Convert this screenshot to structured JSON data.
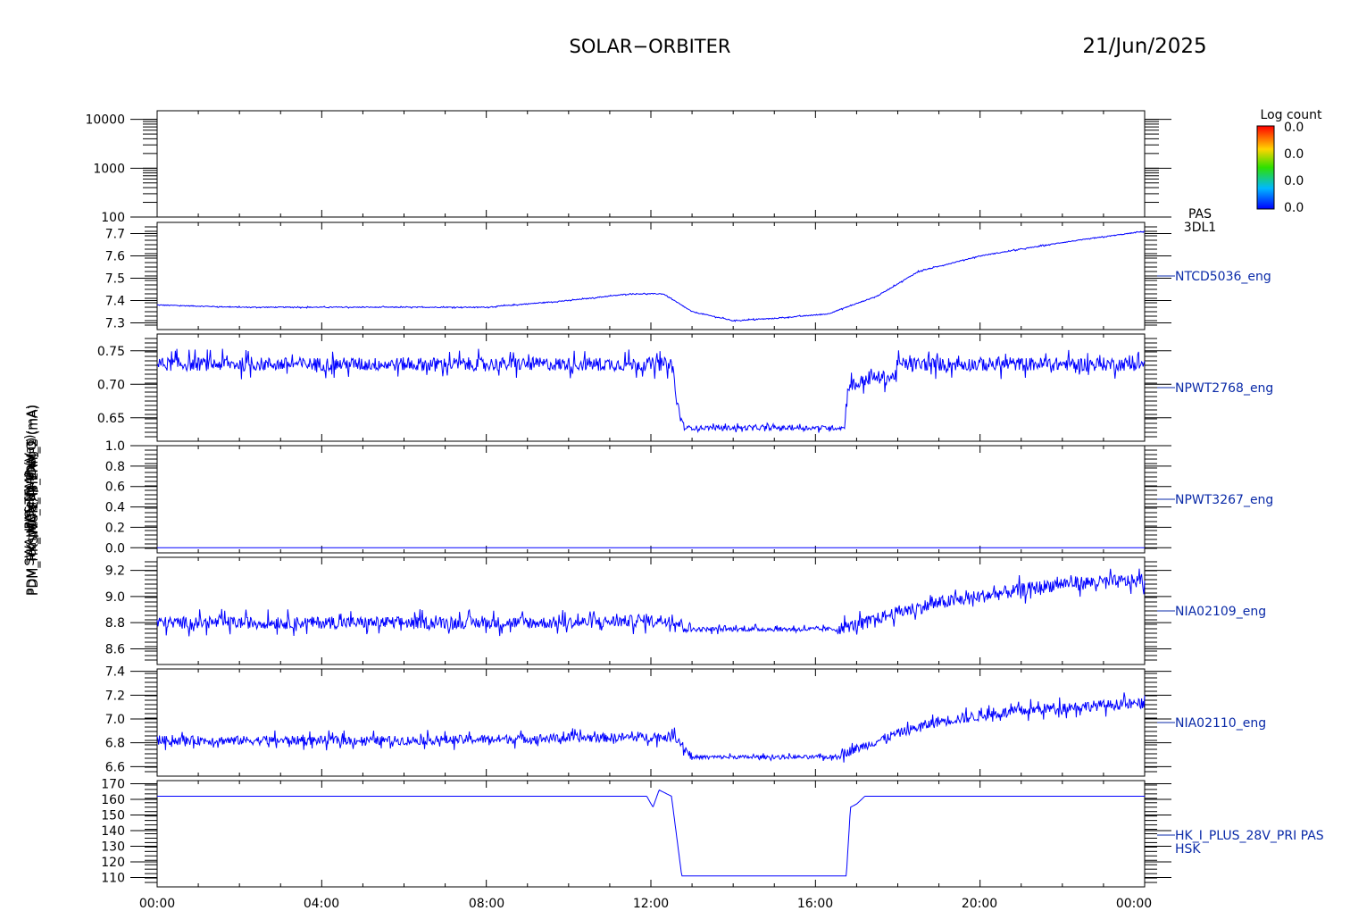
{
  "header": {
    "title": "SOLAR−ORBITER",
    "date": "21/Jun/2025"
  },
  "colorbar": {
    "title": "Log count",
    "labels": [
      "0.0",
      "0.0",
      "0.0",
      "0.0"
    ],
    "colors": [
      "#ff0000",
      "#ffd400",
      "#2ee000",
      "#00b8ff",
      "#0000ff"
    ]
  },
  "colors": {
    "trace": "#0000ff",
    "label": "#0a2aa8",
    "axis": "#000000"
  },
  "x_tick_labels": [
    "00:00",
    "04:00",
    "08:00",
    "12:00",
    "16:00",
    "20:00",
    "00:00"
  ],
  "chart_data": [
    {
      "type": "heatmap",
      "ylabel": "(eV)",
      "yscale": "log",
      "ylim": [
        100,
        15000
      ],
      "y_tick_values": [
        100,
        1000,
        10000
      ],
      "y_tick_labels": [
        "100",
        "1000",
        "10000"
      ],
      "side_label": [
        "PAS",
        "3DL1"
      ],
      "values": []
    },
    {
      "type": "line",
      "ylabel": "Tempx Temp (DegC)",
      "ylim": [
        7.27,
        7.75
      ],
      "y_tick_values": [
        7.3,
        7.4,
        7.5,
        7.6,
        7.7
      ],
      "y_tick_labels": [
        "7.3",
        "7.4",
        "7.5",
        "7.6",
        "7.7"
      ],
      "side_label": "NTCD5036_eng",
      "x": [
        0,
        2,
        4,
        6,
        8,
        10,
        11.5,
        12.3,
        13,
        14,
        15,
        16.3,
        17.5,
        18.5,
        20,
        22,
        24
      ],
      "y": [
        7.38,
        7.37,
        7.37,
        7.37,
        7.37,
        7.4,
        7.43,
        7.43,
        7.35,
        7.31,
        7.32,
        7.34,
        7.42,
        7.53,
        7.6,
        7.66,
        7.71
      ]
    },
    {
      "type": "line",
      "ylabel": "SWA_EAS_ITM",
      "ylim": [
        0.615,
        0.775
      ],
      "y_tick_values": [
        0.65,
        0.7,
        0.75
      ],
      "y_tick_labels": [
        "0.65",
        "0.70",
        "0.75"
      ],
      "side_label": "NPWT2768_eng",
      "x": [
        0,
        12.5,
        12.55,
        12.6,
        12.8,
        16.7,
        16.8,
        17.0,
        17.3,
        17.9,
        18.0,
        24
      ],
      "y": [
        0.73,
        0.73,
        0.72,
        0.68,
        0.635,
        0.635,
        0.7,
        0.7,
        0.71,
        0.71,
        0.73,
        0.73
      ]
    },
    {
      "type": "line",
      "ylabel": "SWA_HIS_TEMP (Vac)",
      "ylim": [
        -0.05,
        1.0
      ],
      "y_tick_values": [
        0.0,
        0.2,
        0.4,
        0.6,
        0.8,
        1.0
      ],
      "y_tick_labels": [
        "0.0",
        "0.2",
        "0.4",
        "0.6",
        "0.8",
        "1.0"
      ],
      "side_label": "NPWT3267_eng",
      "x": [
        0,
        24
      ],
      "y": [
        0.0,
        0.0
      ]
    },
    {
      "type": "line",
      "ylabel": "PDM_HK_IMON_THERM_1 (mA)",
      "ylim": [
        8.48,
        9.3
      ],
      "y_tick_values": [
        8.6,
        8.8,
        9.0,
        9.2
      ],
      "y_tick_labels": [
        "8.6",
        "8.8",
        "9.0",
        "9.2"
      ],
      "side_label": "NIA02109_eng",
      "x": [
        0,
        6,
        10,
        12.5,
        13,
        16.5,
        17.2,
        18,
        19,
        20,
        22,
        24
      ],
      "y": [
        8.8,
        8.8,
        8.8,
        8.82,
        8.75,
        8.75,
        8.8,
        8.88,
        8.95,
        9.0,
        9.1,
        9.12
      ]
    },
    {
      "type": "line",
      "ylabel": "PDM_HK_IMON_THERM_2 (mA)",
      "ylim": [
        6.52,
        7.42
      ],
      "y_tick_values": [
        6.6,
        6.8,
        7.0,
        7.2,
        7.4
      ],
      "y_tick_labels": [
        "6.6",
        "6.8",
        "7.0",
        "7.2",
        "7.4"
      ],
      "side_label": "NIA02110_eng",
      "x": [
        0,
        6,
        10,
        12.6,
        13.0,
        16.4,
        17.0,
        18.0,
        19.0,
        20.5,
        22,
        24
      ],
      "y": [
        6.82,
        6.82,
        6.84,
        6.85,
        6.68,
        6.68,
        6.75,
        6.88,
        6.98,
        7.05,
        7.1,
        7.13
      ]
    },
    {
      "type": "line",
      "ylabel": "PAS (mA)",
      "ylim": [
        104,
        172
      ],
      "y_tick_values": [
        110,
        120,
        130,
        140,
        150,
        160,
        170
      ],
      "y_tick_labels": [
        "110",
        "120",
        "130",
        "140",
        "150",
        "160",
        "170"
      ],
      "side_label": [
        "HK_I_PLUS_28V_PRI PAS",
        "HSK"
      ],
      "x": [
        0,
        11.9,
        12.05,
        12.2,
        12.5,
        12.75,
        16.75,
        16.85,
        17.0,
        17.2,
        24
      ],
      "y": [
        162,
        162,
        155,
        166,
        162,
        111,
        111,
        155,
        157,
        162,
        162
      ]
    }
  ]
}
